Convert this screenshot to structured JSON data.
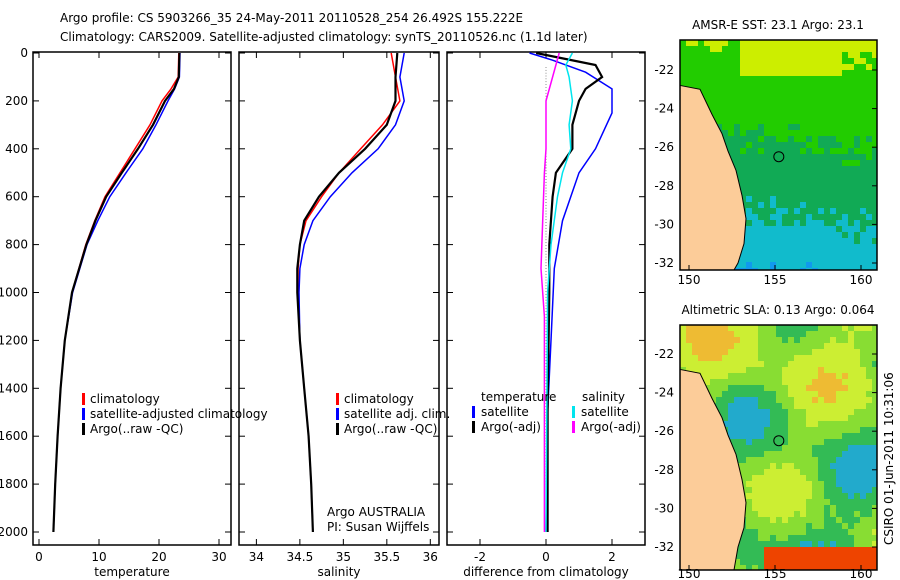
{
  "title_line1": "Argo profile: CS 5903266_35 24-May-2011 20110528_254 26.492S 155.222E",
  "title_line2": "Climatology: CARS2009. Satellite-adjusted climatology: synTS_20110526.nc (1.1d later)",
  "side_label": "CSIRO 01-Jun-2011 10:31:06",
  "colors": {
    "climatology": "#ff0000",
    "satellite": "#0000ff",
    "argo": "#000000",
    "sal_satellite": "#00e5ee",
    "sal_argo": "#ff00ff"
  },
  "chart_data": [
    {
      "type": "line",
      "xlabel": "temperature",
      "ylabel": "depth",
      "xlim": [
        -1,
        32
      ],
      "ylim": [
        2000,
        0
      ],
      "xticks": [
        0,
        10,
        20,
        30
      ],
      "yticks": [
        0,
        200,
        400,
        600,
        800,
        1000,
        1200,
        1400,
        1600,
        1800,
        2000
      ],
      "legend": [
        "climatology",
        "satellite-adjusted climatology",
        "Argo(..raw -QC)"
      ],
      "series": [
        {
          "name": "climatology",
          "color": "#ff0000",
          "depth": [
            0,
            100,
            150,
            200,
            300,
            400,
            500,
            600,
            700,
            800,
            1000,
            1200,
            1400,
            1600,
            1800,
            2000
          ],
          "values": [
            23.3,
            23.2,
            22,
            20.5,
            18.5,
            16,
            13.5,
            11,
            9.3,
            7.8,
            5.5,
            4.3,
            3.6,
            3.1,
            2.7,
            2.4
          ]
        },
        {
          "name": "satellite-adjusted climatology",
          "color": "#0000ff",
          "depth": [
            0,
            100,
            150,
            200,
            300,
            400,
            500,
            600,
            700,
            800,
            1000,
            1200,
            1400,
            1600,
            1800,
            2000
          ],
          "values": [
            23.5,
            23.4,
            22.6,
            21.5,
            19.5,
            17.3,
            14.5,
            11.8,
            9.8,
            8,
            5.6,
            4.3,
            3.6,
            3.1,
            2.7,
            2.4
          ]
        },
        {
          "name": "Argo(..raw -QC)",
          "color": "#000000",
          "depth": [
            0,
            100,
            150,
            200,
            300,
            400,
            500,
            600,
            700,
            800,
            1000,
            1200,
            1400,
            1600,
            1800,
            2000
          ],
          "values": [
            23.4,
            23.3,
            22.5,
            21,
            19,
            16.5,
            13.8,
            11.2,
            9.4,
            7.9,
            5.5,
            4.3,
            3.6,
            3.1,
            2.7,
            2.4
          ]
        }
      ]
    },
    {
      "type": "line",
      "xlabel": "salinity",
      "xlim": [
        33.8,
        36.1
      ],
      "ylim": [
        2000,
        0
      ],
      "xticks": [
        34,
        34.5,
        35,
        35.5,
        36
      ],
      "legend": [
        "climatology",
        "satellite adj. clim.",
        "Argo(..raw -QC)"
      ],
      "annotation1": "Argo AUSTRALIA",
      "annotation2": "PI: Susan Wijffels",
      "series": [
        {
          "name": "climatology",
          "color": "#ff0000",
          "depth": [
            0,
            100,
            200,
            300,
            400,
            500,
            600,
            700,
            800,
            900,
            1000,
            1200,
            1400,
            1600,
            1800,
            2000
          ],
          "values": [
            35.55,
            35.6,
            35.65,
            35.45,
            35.2,
            34.95,
            34.75,
            34.57,
            34.5,
            34.48,
            34.48,
            34.5,
            34.55,
            34.6,
            34.63,
            34.65
          ]
        },
        {
          "name": "satellite adj. clim.",
          "color": "#0000ff",
          "depth": [
            0,
            100,
            200,
            300,
            400,
            500,
            600,
            700,
            800,
            900,
            1000,
            1200,
            1400,
            1600,
            1800,
            2000
          ],
          "values": [
            35.7,
            35.65,
            35.7,
            35.6,
            35.4,
            35.1,
            34.85,
            34.65,
            34.55,
            34.5,
            34.49,
            34.5,
            34.55,
            34.6,
            34.63,
            34.65
          ]
        },
        {
          "name": "Argo(..raw -QC)",
          "color": "#000000",
          "depth": [
            0,
            100,
            200,
            300,
            400,
            500,
            600,
            700,
            800,
            900,
            1000,
            1200,
            1400,
            1600,
            1800,
            2000
          ],
          "values": [
            35.62,
            35.6,
            35.6,
            35.5,
            35.25,
            34.95,
            34.72,
            34.55,
            34.5,
            34.47,
            34.47,
            34.5,
            34.55,
            34.6,
            34.63,
            34.65
          ]
        }
      ]
    },
    {
      "type": "line",
      "xlabel": "difference from climatology",
      "xlim": [
        -3,
        3
      ],
      "ylim": [
        2000,
        0
      ],
      "xticks": [
        -2,
        0,
        2
      ],
      "legend_temp_title": "temperature",
      "legend_sal_title": "salinity",
      "legend": [
        "satellite",
        "Argo(-adj)",
        "satellite",
        "Argo(-adj)"
      ],
      "series": [
        {
          "name": "temperature satellite",
          "color": "#0000ff",
          "depth": [
            0,
            30,
            80,
            150,
            250,
            400,
            500,
            700,
            900,
            1200,
            1500,
            2000
          ],
          "values": [
            -0.5,
            0.2,
            1.2,
            2.0,
            2.0,
            1.5,
            1.0,
            0.5,
            0.25,
            0.15,
            0.05,
            0
          ]
        },
        {
          "name": "temperature Argo(-adj)",
          "color": "#000000",
          "depth": [
            0,
            50,
            100,
            150,
            200,
            300,
            400,
            500,
            600,
            800,
            1000,
            1500,
            2000
          ],
          "values": [
            -0.3,
            1.5,
            1.7,
            1.2,
            1.0,
            0.8,
            0.8,
            0.3,
            0.2,
            0.1,
            0.1,
            0.05,
            0.05
          ]
        },
        {
          "name": "salinity satellite",
          "color": "#00e5ee",
          "depth": [
            0,
            50,
            100,
            200,
            300,
            400,
            500,
            600,
            800,
            1000,
            2000
          ],
          "values": [
            0.8,
            0.6,
            0.7,
            0.8,
            0.7,
            0.75,
            0.5,
            0.35,
            0.15,
            0.05,
            0
          ]
        },
        {
          "name": "salinity Argo(-adj)",
          "color": "#ff00ff",
          "depth": [
            0,
            50,
            100,
            200,
            300,
            400,
            500,
            700,
            900,
            1100,
            2000
          ],
          "values": [
            0.4,
            0.3,
            0.2,
            0,
            0,
            0,
            -0.05,
            -0.1,
            -0.15,
            -0.05,
            -0.05
          ]
        }
      ]
    }
  ],
  "maps": [
    {
      "title": "AMSR-E SST: 23.1 Argo: 23.1",
      "xticks": [
        150,
        155,
        160
      ],
      "yticks": [
        -22,
        -24,
        -26,
        -28,
        -30,
        -32
      ]
    },
    {
      "title": "Altimetric SLA: 0.13 Argo: 0.064",
      "xticks": [
        150,
        155,
        160
      ],
      "yticks": [
        -22,
        -24,
        -26,
        -28,
        -30,
        -32
      ]
    }
  ]
}
